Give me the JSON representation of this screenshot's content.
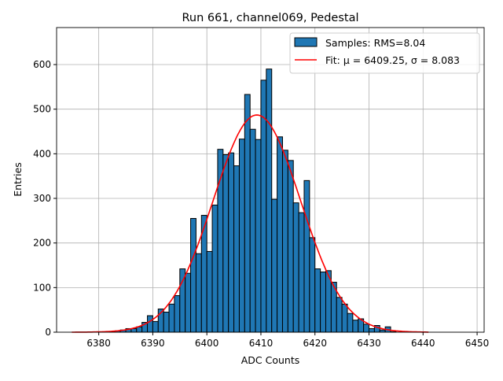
{
  "chart_data": {
    "type": "bar",
    "title": "Run 661, channel069, Pedestal",
    "xlabel": "ADC Counts",
    "ylabel": "Entries",
    "xlim": [
      6372.2,
      6451.3
    ],
    "ylim": [
      0,
      683
    ],
    "grid": true,
    "xticks": [
      6380,
      6390,
      6400,
      6410,
      6420,
      6430,
      6440,
      6450
    ],
    "yticks": [
      0,
      100,
      200,
      300,
      400,
      500,
      600
    ],
    "legend_position": "top-right",
    "histogram": {
      "name": "Samples: RMS=8.04",
      "bin_width": 1,
      "bin_start": 6382,
      "values": [
        1,
        3,
        5,
        8,
        8,
        12,
        22,
        37,
        24,
        52,
        45,
        63,
        82,
        142,
        132,
        255,
        176,
        262,
        181,
        285,
        410,
        398,
        402,
        373,
        433,
        533,
        455,
        432,
        565,
        590,
        298,
        438,
        408,
        385,
        290,
        268,
        340,
        212,
        142,
        135,
        138,
        112,
        78,
        63,
        42,
        27,
        30,
        18,
        8,
        15,
        5,
        12,
        1
      ],
      "color": "#1f77b4"
    },
    "fit": {
      "name": "Fit: μ = 6409.25, σ = 8.083",
      "mu": 6409.25,
      "sigma": 8.083,
      "amplitude": 487,
      "x_range": [
        6375,
        6441
      ],
      "color": "#ff0000"
    }
  }
}
